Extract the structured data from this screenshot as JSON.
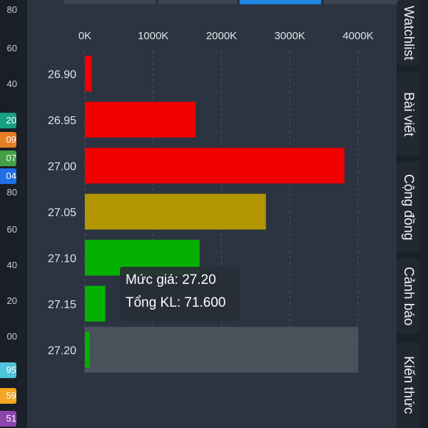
{
  "left_strip": {
    "prices": [
      "80",
      "60",
      "40",
      "80",
      "60",
      "40",
      "20",
      "00"
    ],
    "badges": [
      {
        "text": "20",
        "color": "#16a085"
      },
      {
        "text": "09",
        "color": "#e67e22"
      },
      {
        "text": "07",
        "color": "#43a047"
      },
      {
        "text": "04",
        "color": "#1e6fe8"
      },
      {
        "text": "95",
        "color": "#4fc3d9"
      },
      {
        "text": "59",
        "color": "#f5a623"
      },
      {
        "text": "51",
        "color": "#8e44ad"
      }
    ]
  },
  "right_tabs": [
    "Watchlist",
    "Bài viết",
    "Cộng đồng",
    "Cảnh báo",
    "Kiến thức"
  ],
  "tooltip": {
    "price_line": "Mức giá: 27.20",
    "volume_line": "Tổng KL: 71.600"
  },
  "chart_data": {
    "type": "bar",
    "orientation": "horizontal",
    "categories": [
      "26.90",
      "26.95",
      "27.00",
      "27.05",
      "27.10",
      "27.15",
      "27.20"
    ],
    "values": [
      100000,
      1620000,
      3800000,
      2650000,
      1680000,
      300000,
      71600
    ],
    "colors": [
      "#f20000",
      "#f20000",
      "#f20000",
      "#b39700",
      "#06b000",
      "#06b000",
      "#06b000"
    ],
    "x_ticks": [
      "0K",
      "1000K",
      "2000K",
      "3000K",
      "4000K"
    ],
    "xlim": [
      0,
      4000000
    ],
    "highlighted_category": "27.20",
    "grid": "vertical-dashed"
  }
}
